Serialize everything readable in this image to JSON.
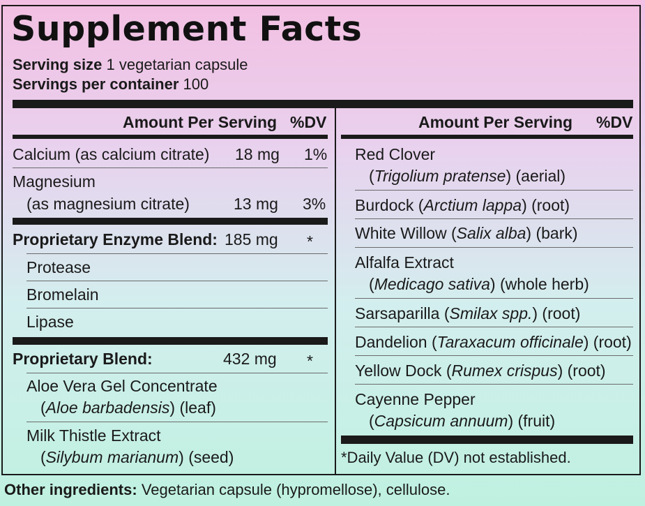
{
  "title": "Supplement Facts",
  "serving": {
    "size_label": "Serving size",
    "size_value": "1 vegetarian capsule",
    "per_container_label": "Servings per container",
    "per_container_value": "100"
  },
  "left": {
    "header_amount": "Amount Per Serving",
    "header_dv": "%DV",
    "calcium": {
      "name": "Calcium (as calcium citrate)",
      "amount": "18 mg",
      "dv": "1%"
    },
    "magnesium": {
      "name": "Magnesium",
      "sub": "(as magnesium citrate)",
      "amount": "13 mg",
      "dv": "3%"
    },
    "enzyme_blend": {
      "name": "Proprietary Enzyme Blend:",
      "amount": "185 mg",
      "dv": "*"
    },
    "enzymes": [
      "Protease",
      "Bromelain",
      "Lipase"
    ],
    "blend": {
      "name": "Proprietary Blend:",
      "amount": "432 mg",
      "dv": "*"
    },
    "aloe": {
      "name": "Aloe Vera Gel Concentrate",
      "latin": "Aloe barbadensis",
      "part": "(leaf)"
    },
    "milk_thistle": {
      "name": "Milk Thistle Extract",
      "latin": "Silybum marianum",
      "part": "(seed)"
    }
  },
  "right": {
    "header_amount": "Amount Per Serving",
    "header_dv": "%DV",
    "red_clover": {
      "name": "Red Clover",
      "latin": "Trigolium pratense",
      "part": "(aerial)"
    },
    "burdock": {
      "name": "Burdock (",
      "latin": "Arctium lappa",
      "part": ") (root)"
    },
    "white_willow": {
      "name": "White Willow (",
      "latin": "Salix alba",
      "part": ") (bark)"
    },
    "alfalfa": {
      "name": "Alfalfa Extract",
      "latin": "Medicago sativa",
      "part": "(whole herb)"
    },
    "sarsaparilla": {
      "name": "Sarsaparilla (",
      "latin": "Smilax spp.",
      "part": ") (root)"
    },
    "dandelion": {
      "name": "Dandelion (",
      "latin": "Taraxacum officinale",
      "part": ") (root)"
    },
    "yellow_dock": {
      "name": "Yellow Dock (",
      "latin": "Rumex crispus",
      "part": ") (root)"
    },
    "cayenne": {
      "name": "Cayenne Pepper",
      "latin": "Capsicum annuum",
      "part": "(fruit)"
    },
    "footnote": "*Daily Value (DV) not established."
  },
  "other": {
    "label": "Other ingredients:",
    "value": "Vegetarian capsule (hypromellose), cellulose."
  }
}
